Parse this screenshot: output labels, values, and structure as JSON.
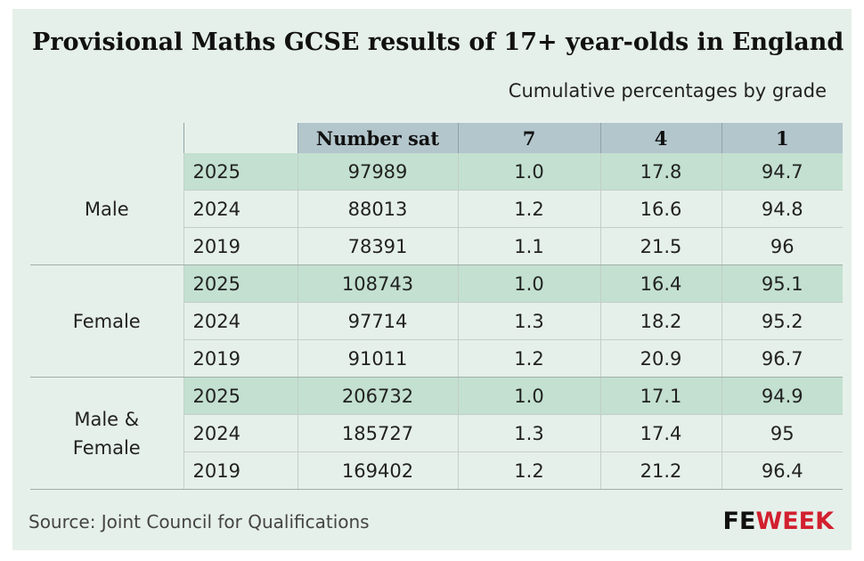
{
  "title": "Provisional Maths GCSE results of 17+ year-olds in England",
  "subtitle": "Cumulative percentages by grade",
  "source": "Source: Joint Council for Qualifications",
  "logo": {
    "fe": "FE",
    "week": "WEEK"
  },
  "colors": {
    "header": "#b3c6cc",
    "highlight": "#c3e0d0",
    "background": "#e6f0ea",
    "brand_red": "#d2202f"
  },
  "chart_data": {
    "type": "table",
    "title": "Provisional Maths GCSE results of 17+ year-olds in England",
    "subtitle": "Cumulative percentages by grade",
    "columns": [
      "Number sat",
      "7",
      "4",
      "1"
    ],
    "groups": [
      {
        "name": "Male",
        "rows": [
          {
            "year": "2025",
            "values": [
              "97989",
              "1.0",
              "17.8",
              "94.7"
            ]
          },
          {
            "year": "2024",
            "values": [
              "88013",
              "1.2",
              "16.6",
              "94.8"
            ]
          },
          {
            "year": "2019",
            "values": [
              "78391",
              "1.1",
              "21.5",
              "96"
            ]
          }
        ]
      },
      {
        "name": "Female",
        "rows": [
          {
            "year": "2025",
            "values": [
              "108743",
              "1.0",
              "16.4",
              "95.1"
            ]
          },
          {
            "year": "2024",
            "values": [
              "97714",
              "1.3",
              "18.2",
              "95.2"
            ]
          },
          {
            "year": "2019",
            "values": [
              "91011",
              "1.2",
              "20.9",
              "96.7"
            ]
          }
        ]
      },
      {
        "name": "Male & Female",
        "rows": [
          {
            "year": "2025",
            "values": [
              "206732",
              "1.0",
              "17.1",
              "94.9"
            ]
          },
          {
            "year": "2024",
            "values": [
              "185727",
              "1.3",
              "17.4",
              "95"
            ]
          },
          {
            "year": "2019",
            "values": [
              "169402",
              "1.2",
              "21.2",
              "96.4"
            ]
          }
        ]
      }
    ]
  }
}
